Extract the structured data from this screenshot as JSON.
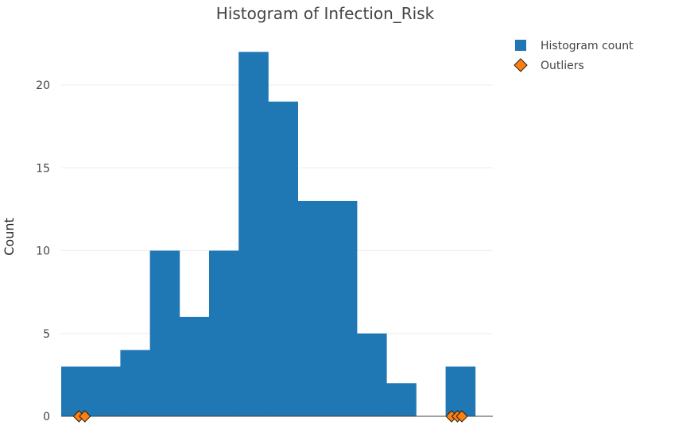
{
  "chart_data": {
    "type": "bar",
    "title": "Histogram of Infection_Risk",
    "xlabel": "",
    "ylabel": "Count",
    "ylim": [
      0,
      23
    ],
    "yticks": [
      0,
      5,
      10,
      15,
      20
    ],
    "grid": true,
    "legend_position": "top-right",
    "series": [
      {
        "name": "Histogram count",
        "color": "#1f77b4",
        "bins": [
          {
            "index": 0,
            "count": 3
          },
          {
            "index": 1,
            "count": 3
          },
          {
            "index": 2,
            "count": 4
          },
          {
            "index": 3,
            "count": 10
          },
          {
            "index": 4,
            "count": 6
          },
          {
            "index": 5,
            "count": 10
          },
          {
            "index": 6,
            "count": 22
          },
          {
            "index": 7,
            "count": 19
          },
          {
            "index": 8,
            "count": 13
          },
          {
            "index": 9,
            "count": 13
          },
          {
            "index": 10,
            "count": 5
          },
          {
            "index": 11,
            "count": 2
          },
          {
            "index": 12,
            "count": 0
          },
          {
            "index": 13,
            "count": 3
          }
        ]
      },
      {
        "name": "Outliers",
        "color": "#ff7f0e",
        "marker": "diamond",
        "points": [
          {
            "bin_position": 0.6,
            "y": 0
          },
          {
            "bin_position": 0.8,
            "y": 0
          },
          {
            "bin_position": 13.2,
            "y": 0
          },
          {
            "bin_position": 13.4,
            "y": 0
          },
          {
            "bin_position": 13.55,
            "y": 0
          }
        ]
      }
    ]
  }
}
